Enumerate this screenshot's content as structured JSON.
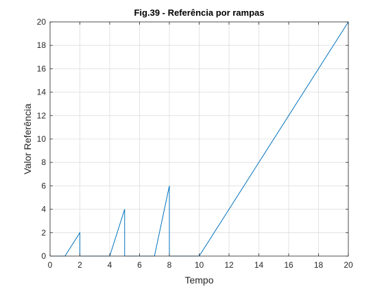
{
  "chart_data": {
    "type": "line",
    "title": "Fig.39 - Referência por rampas",
    "xlabel": "Tempo",
    "ylabel": "Valor Referência",
    "xlim": [
      0,
      20
    ],
    "ylim": [
      0,
      20
    ],
    "xticks": [
      0,
      2,
      4,
      6,
      8,
      10,
      12,
      14,
      16,
      18,
      20
    ],
    "yticks": [
      0,
      2,
      4,
      6,
      8,
      10,
      12,
      14,
      16,
      18,
      20
    ],
    "grid": true,
    "series": [
      {
        "color": "#0072BD",
        "x": [
          0,
          1,
          2,
          2,
          4,
          5,
          5,
          7,
          8,
          8,
          10,
          20
        ],
        "y": [
          0,
          0,
          2,
          0,
          0,
          4,
          0,
          0,
          6,
          0,
          0,
          20
        ]
      }
    ]
  }
}
